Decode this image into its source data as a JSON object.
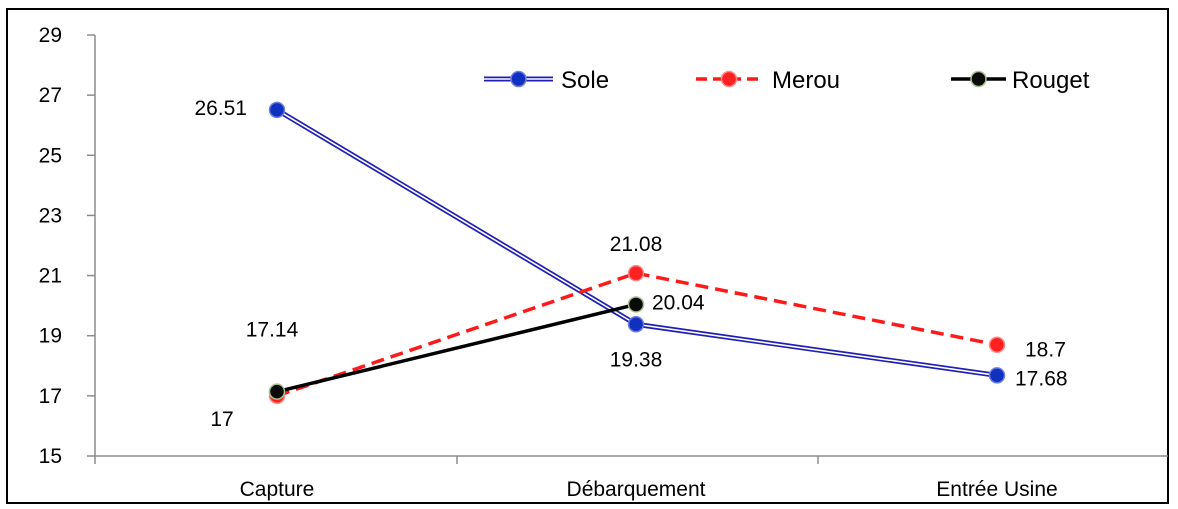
{
  "chart_data": {
    "type": "line",
    "categories": [
      "Capture",
      "Débarquement",
      "Entrée Usine"
    ],
    "ylim": [
      15,
      29
    ],
    "yticks": [
      15,
      17,
      19,
      21,
      23,
      25,
      27,
      29
    ],
    "grid": false,
    "legend": "top-right",
    "series": [
      {
        "name": "Sole",
        "values": [
          26.51,
          19.38,
          17.68
        ],
        "data_labels": [
          "26.51",
          "19.38",
          "17.68"
        ],
        "color": "#1f1fb4",
        "line_style": "double",
        "marker_color": "#1030c0"
      },
      {
        "name": "Merou",
        "values": [
          17,
          21.08,
          18.7
        ],
        "data_labels": [
          "17",
          "21.08",
          "18.7"
        ],
        "color": "#ff1a1a",
        "line_style": "dashed",
        "marker_color": "#ff2020"
      },
      {
        "name": "Rouget",
        "values": [
          17.14,
          20.04,
          null
        ],
        "data_labels": [
          "17.14",
          "20.04",
          ""
        ],
        "color": "#000000",
        "line_style": "solid",
        "marker_color": "#0a0a0a"
      }
    ]
  }
}
